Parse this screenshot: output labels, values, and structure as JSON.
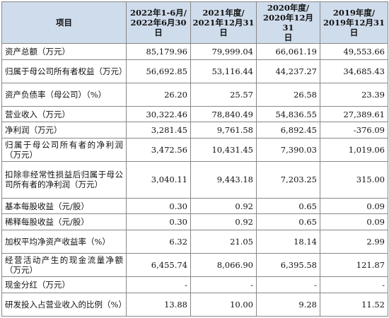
{
  "table": {
    "item_header": "项目",
    "period_headers": [
      "2022年1-6月/\n2022年6月30\n日",
      "2021年度/\n2021年12月31\n日",
      "2020年度/\n2020年12月31\n日",
      "2019年度/\n2019年12月31\n日"
    ],
    "rows": [
      {
        "label": "资产总额（万元）",
        "values": [
          "85,179.96",
          "79,999.04",
          "66,061.19",
          "49,553.66"
        ]
      },
      {
        "label": "归属于母公司所有者权益（万元）",
        "values": [
          "56,692.85",
          "53,116.44",
          "44,237.27",
          "34,685.43"
        ]
      },
      {
        "label": "资产负债率（母公司）（%）",
        "values": [
          "26.20",
          "25.57",
          "26.58",
          "23.39"
        ]
      },
      {
        "label": "营业收入（万元）",
        "values": [
          "30,322.46",
          "78,840.49",
          "54,836.55",
          "27,389.61"
        ]
      },
      {
        "label": "净利润（万元）",
        "values": [
          "3,281.45",
          "9,761.58",
          "6,892.45",
          "-376.09"
        ]
      },
      {
        "label": "归属于母公司所有者的净利润（万元）",
        "values": [
          "3,472.56",
          "10,431.45",
          "7,390.03",
          "1,019.06"
        ]
      },
      {
        "label": "扣除非经常性损益后归属于母公司所有者的净利润（万元）",
        "values": [
          "3,040.11",
          "9,443.18",
          "7,203.25",
          "315.00"
        ]
      },
      {
        "label": "基本每股收益（元/股）",
        "values": [
          "0.30",
          "0.92",
          "0.65",
          "0.09"
        ]
      },
      {
        "label": "稀释每股收益（元/股）",
        "values": [
          "0.30",
          "0.92",
          "0.65",
          "0.09"
        ]
      },
      {
        "label": "加权平均净资产收益率（%）",
        "values": [
          "6.32",
          "21.05",
          "18.14",
          "2.99"
        ]
      },
      {
        "label": "经营活动产生的现金流量净额（万元）",
        "values": [
          "6,455.74",
          "8,066.90",
          "6,395.58",
          "121.87"
        ]
      },
      {
        "label": "现金分红（万元）",
        "values": [
          "-",
          "-",
          "-",
          "-"
        ]
      },
      {
        "label": "研发投入占营业收入的比例（%）",
        "values": [
          "13.88",
          "10.00",
          "9.28",
          "11.52"
        ]
      }
    ]
  }
}
